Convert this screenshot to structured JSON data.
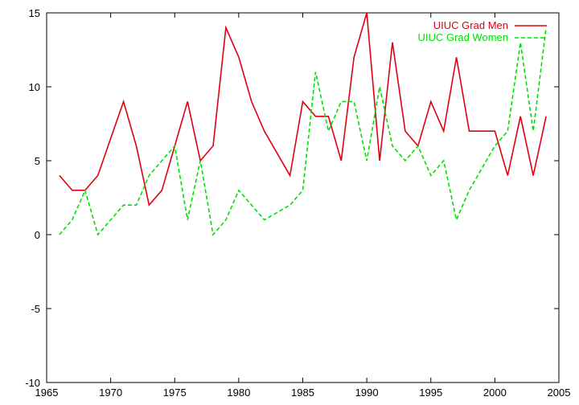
{
  "chart_data": {
    "type": "line",
    "xlim": [
      1965,
      2005
    ],
    "ylim": [
      -10,
      15
    ],
    "x_ticks": [
      "1965",
      "1970",
      "1975",
      "1980",
      "1985",
      "1990",
      "1995",
      "2000",
      "2005"
    ],
    "y_ticks": [
      "-10",
      "-5",
      "0",
      "5",
      "10",
      "15"
    ],
    "grid": false,
    "legend_position": "top-right",
    "series": [
      {
        "name": "UIUC Grad Men",
        "color": "#e0000f",
        "style": "solid",
        "x": [
          1966,
          1967,
          1968,
          1969,
          1970,
          1971,
          1972,
          1973,
          1974,
          1975,
          1976,
          1977,
          1978,
          1979,
          1980,
          1981,
          1982,
          1983,
          1984,
          1985,
          1986,
          1987,
          1988,
          1989,
          1990,
          1991,
          1992,
          1993,
          1994,
          1995,
          1996,
          1997,
          1998,
          1999,
          2000,
          2001,
          2002,
          2003,
          2004
        ],
        "y": [
          4,
          3,
          3,
          4,
          6.5,
          9,
          6,
          2,
          3,
          6,
          9,
          5,
          6,
          14,
          12,
          9,
          7,
          5.5,
          4,
          9,
          8,
          8,
          5,
          12,
          15,
          5,
          13,
          7,
          6,
          9,
          7,
          12,
          7,
          7,
          7,
          4,
          8,
          4,
          8
        ]
      },
      {
        "name": "UIUC Grad Women",
        "color": "#00e000",
        "style": "dashed",
        "x": [
          1966,
          1967,
          1968,
          1969,
          1970,
          1971,
          1972,
          1973,
          1974,
          1975,
          1976,
          1977,
          1978,
          1979,
          1980,
          1981,
          1982,
          1983,
          1984,
          1985,
          1986,
          1987,
          1988,
          1989,
          1990,
          1991,
          1992,
          1993,
          1994,
          1995,
          1996,
          1997,
          1998,
          1999,
          2000,
          2001,
          2002,
          2003,
          2004
        ],
        "y": [
          0,
          1,
          3,
          0,
          1,
          2,
          2,
          4,
          5,
          6,
          1,
          5,
          0,
          1,
          3,
          2,
          1,
          1.5,
          2,
          3,
          11,
          7,
          9,
          9,
          5,
          10,
          6,
          5,
          6,
          4,
          5,
          1,
          3,
          4.5,
          6,
          7,
          13,
          7,
          14
        ]
      }
    ]
  }
}
